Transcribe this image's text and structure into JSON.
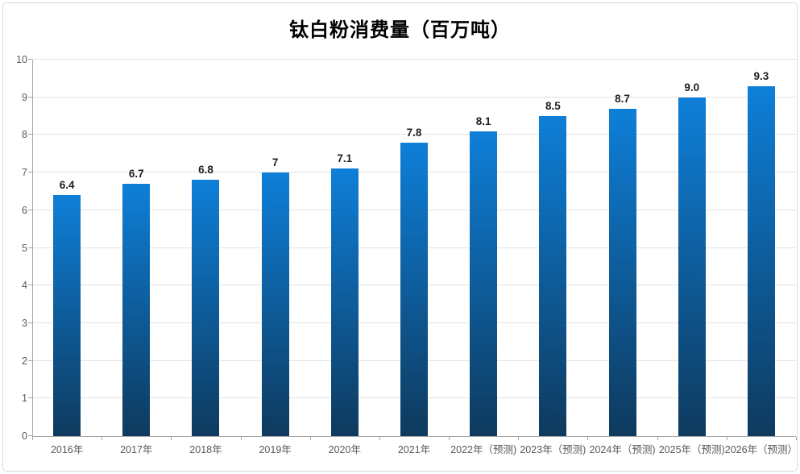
{
  "frame": {
    "background": "#ffffff",
    "border_color": "#d9d9d9"
  },
  "chart_data": {
    "type": "bar",
    "title": "钛白粉消费量（百万吨）",
    "categories": [
      "2016年",
      "2017年",
      "2018年",
      "2019年",
      "2020年",
      "2021年",
      "2022年（预测)",
      "2023年（预测)",
      "2024年（预测)",
      "2025年（预测)",
      "2026年（预测）"
    ],
    "values": [
      6.4,
      6.7,
      6.8,
      7,
      7.1,
      7.8,
      8.1,
      8.5,
      8.7,
      9.0,
      9.3
    ],
    "value_labels": [
      "6.4",
      "6.7",
      "6.8",
      "7",
      "7.1",
      "7.8",
      "8.1",
      "8.5",
      "8.7",
      "9.0",
      "9.3"
    ],
    "xlabel": "",
    "ylabel": "",
    "ylim": [
      0,
      10
    ],
    "y_ticks": [
      0,
      1,
      2,
      3,
      4,
      5,
      6,
      7,
      8,
      9,
      10
    ],
    "grid": true,
    "legend": "none",
    "colors": {
      "bar_gradient_top": "#0e7fd8",
      "bar_gradient_bottom": "#0e3a5e",
      "gridline": "#e2e2e2",
      "axis_line": "#a6a6a6",
      "tick_label": "#595959",
      "value_label": "#1f1f1f",
      "title": "#000000"
    }
  }
}
